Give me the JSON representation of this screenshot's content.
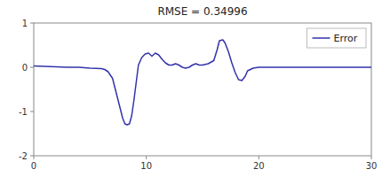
{
  "chart_data": {
    "type": "line",
    "title": "RMSE = 0.34996",
    "x": [
      0,
      1,
      2,
      3,
      4,
      5,
      6,
      6.3,
      6.6,
      7.0,
      7.3,
      7.6,
      7.9,
      8.1,
      8.3,
      8.5,
      8.7,
      8.9,
      9.1,
      9.3,
      9.6,
      9.9,
      10.2,
      10.5,
      10.8,
      11.1,
      11.4,
      11.7,
      12.0,
      12.3,
      12.6,
      12.9,
      13.2,
      13.5,
      13.8,
      14.1,
      14.4,
      14.7,
      15.0,
      15.5,
      16.0,
      16.3,
      16.5,
      16.8,
      17.0,
      17.3,
      17.6,
      17.9,
      18.2,
      18.5,
      18.8,
      19.0,
      19.5,
      20,
      21,
      22,
      23,
      24,
      25,
      26,
      27,
      28,
      29,
      30
    ],
    "series": [
      {
        "name": "Error",
        "color": "#3333AA",
        "values": [
          0.03,
          0.02,
          0.01,
          0.0,
          0.0,
          -0.02,
          -0.03,
          -0.05,
          -0.1,
          -0.25,
          -0.55,
          -0.85,
          -1.15,
          -1.28,
          -1.3,
          -1.28,
          -1.1,
          -0.75,
          -0.35,
          0.05,
          0.22,
          0.3,
          0.32,
          0.25,
          0.32,
          0.28,
          0.18,
          0.1,
          0.05,
          0.05,
          0.08,
          0.05,
          0.0,
          -0.02,
          0.0,
          0.05,
          0.08,
          0.05,
          0.05,
          0.08,
          0.15,
          0.4,
          0.6,
          0.62,
          0.55,
          0.35,
          0.1,
          -0.12,
          -0.28,
          -0.3,
          -0.2,
          -0.08,
          -0.02,
          0.0,
          0.0,
          0.0,
          0.0,
          0.0,
          0.0,
          0.0,
          0.0,
          0.0,
          0.0,
          0.0
        ]
      }
    ],
    "xlim": [
      0,
      30
    ],
    "ylim": [
      -2,
      1
    ],
    "xticks": [
      0,
      10,
      20,
      30
    ],
    "yticks": [
      -2,
      -1,
      0,
      1
    ],
    "grid": false,
    "legend": "upper right"
  }
}
